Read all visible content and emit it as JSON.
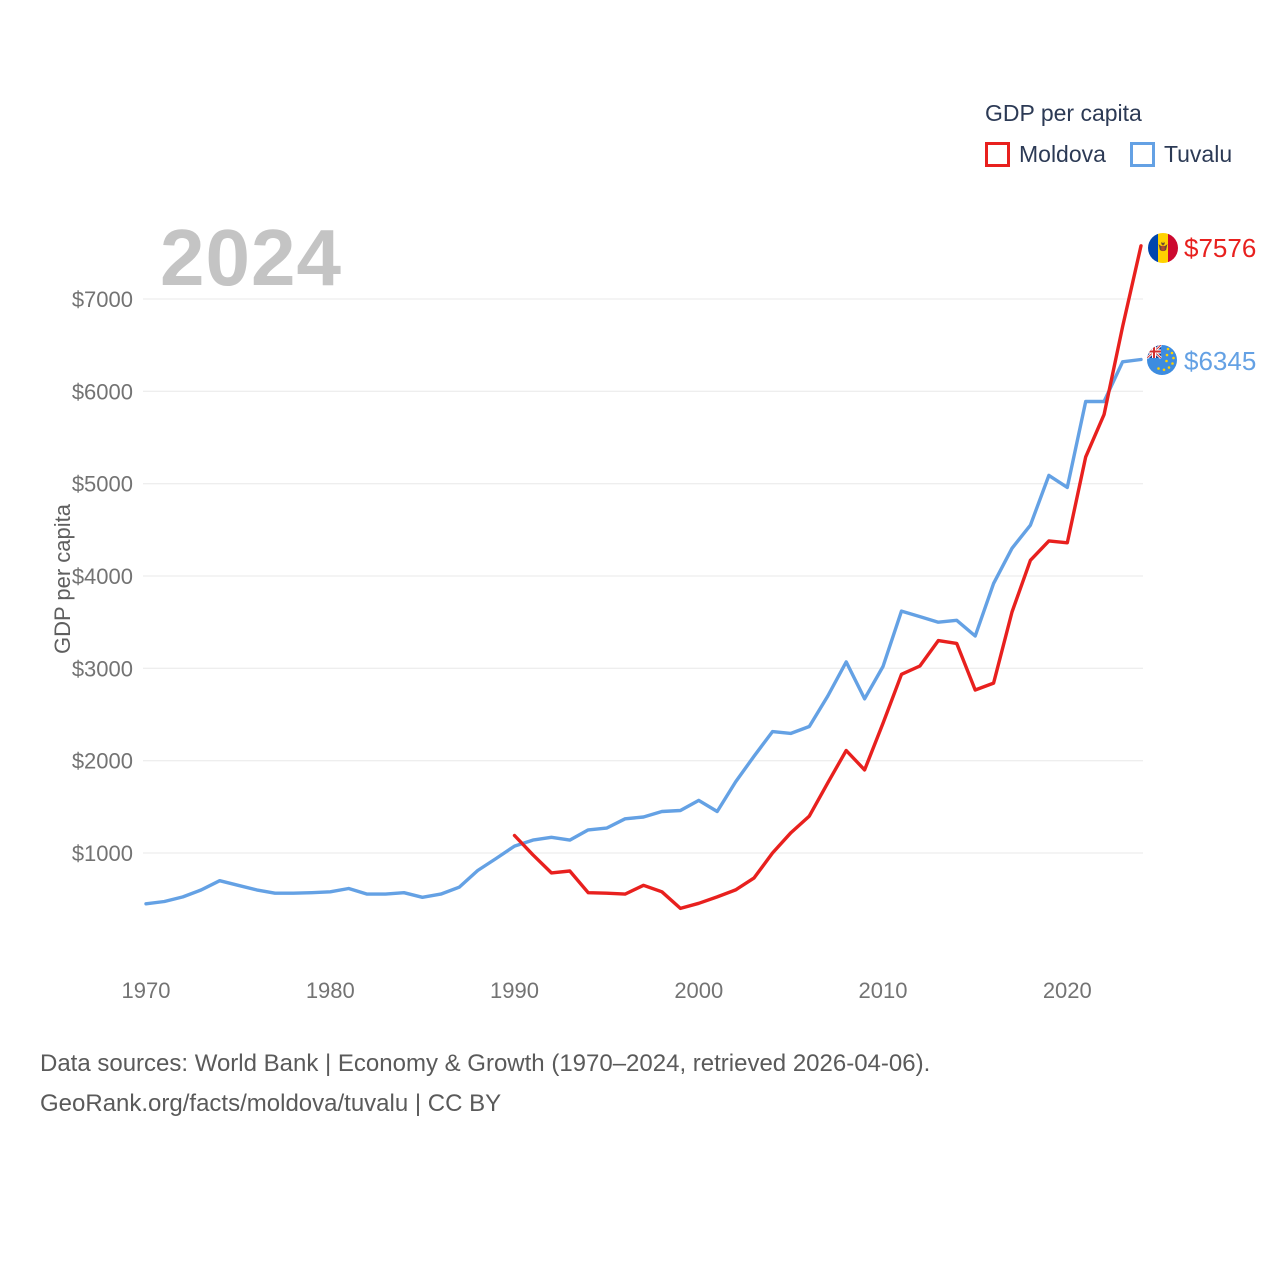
{
  "watermark": "2024",
  "legend": {
    "title": "GDP per capita"
  },
  "footer": {
    "line1": "Data sources: World Bank | Economy & Growth (1970–2024, retrieved 2026-04-06).",
    "line2": "GeoRank.org/facts/moldova/tuvalu | CC BY"
  },
  "colors": {
    "moldova_red": "#e8201e",
    "tuvalu_blue": "#64a1e4",
    "grid": "#e8e8e8",
    "axis_text": "#737373",
    "watermark_gray": "#c4c4c4"
  },
  "chart_data": {
    "type": "line",
    "title": "GDP per capita",
    "xlabel": "",
    "ylabel": "GDP per capita",
    "xlim": [
      1970,
      2024
    ],
    "ylim": [
      350,
      7700
    ],
    "grid": true,
    "legend_position": "top-right",
    "x_ticks": [
      1970,
      1980,
      1990,
      2000,
      2010,
      2020
    ],
    "y_ticks": [
      "$1000",
      "$2000",
      "$3000",
      "$4000",
      "$5000",
      "$6000",
      "$7000"
    ],
    "series": [
      {
        "name": "Moldova",
        "color": "#e8201e",
        "end_label": "$7576",
        "end_value": 7576,
        "start_year": 1990,
        "values": [
          1190,
          980,
          785,
          805,
          570,
          565,
          555,
          650,
          580,
          400,
          455,
          525,
          600,
          730,
          1000,
          1220,
          1400,
          1760,
          2110,
          1900,
          2405,
          2935,
          3025,
          3300,
          3270,
          2765,
          2840,
          3610,
          4170,
          4380,
          4360,
          5290,
          5750,
          6700,
          7576
        ]
      },
      {
        "name": "Tuvalu",
        "color": "#64a1e4",
        "end_label": "$6345",
        "end_value": 6345,
        "start_year": 1970,
        "values": [
          450,
          475,
          525,
          600,
          700,
          650,
          600,
          565,
          565,
          570,
          580,
          615,
          555,
          555,
          570,
          520,
          555,
          630,
          810,
          940,
          1075,
          1140,
          1170,
          1140,
          1250,
          1270,
          1370,
          1390,
          1450,
          1460,
          1570,
          1450,
          1770,
          2050,
          2315,
          2295,
          2370,
          2700,
          3070,
          2670,
          3020,
          3620,
          3560,
          3500,
          3520,
          3350,
          3920,
          4300,
          4550,
          5090,
          4960,
          5890,
          5890,
          6320,
          6345
        ]
      }
    ]
  }
}
